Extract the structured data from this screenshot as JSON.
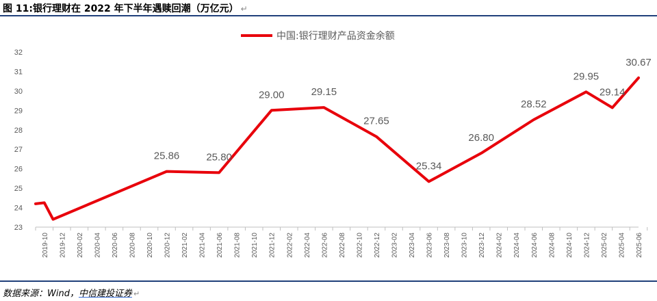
{
  "caption": {
    "text": "图 11:银行理财在 2022 年下半年遇赎回潮（万亿元）",
    "mark": "↵"
  },
  "source": {
    "prefix": "数据来源：Wind，",
    "brand": "中信建投证券",
    "mark": "↵"
  },
  "colors": {
    "series": "#e8000b",
    "axis_text": "#595959",
    "rule": "#1f3f7a"
  },
  "chart_data": {
    "type": "line",
    "title": "",
    "xlabel": "",
    "ylabel": "",
    "ylim": [
      23,
      32
    ],
    "yticks": [
      23,
      24,
      25,
      26,
      27,
      28,
      29,
      30,
      31,
      32
    ],
    "grid": false,
    "legend_position": "top-center",
    "x_tick_labels": [
      "2019-10",
      "2019-12",
      "2020-02",
      "2020-04",
      "2020-06",
      "2020-08",
      "2020-10",
      "2020-12",
      "2021-02",
      "2021-04",
      "2021-06",
      "2021-08",
      "2021-10",
      "2021-12",
      "2022-02",
      "2022-04",
      "2022-06",
      "2022-08",
      "2022-10",
      "2022-12",
      "2023-02",
      "2023-04",
      "2023-06",
      "2023-08",
      "2023-10",
      "2023-12",
      "2024-02",
      "2024-04",
      "2024-06",
      "2024-08",
      "2024-10",
      "2024-12",
      "2025-02",
      "2025-04",
      "2025-06"
    ],
    "series": [
      {
        "name": "中国:银行理财产品资金余额",
        "color": "#e8000b",
        "points": [
          {
            "x": "2019-09",
            "y": 24.2
          },
          {
            "x": "2019-10",
            "y": 24.25
          },
          {
            "x": "2019-11",
            "y": 23.4
          },
          {
            "x": "2020-12",
            "y": 25.86,
            "label": "25.86"
          },
          {
            "x": "2021-06",
            "y": 25.8,
            "label": "25.80"
          },
          {
            "x": "2021-12",
            "y": 29.0,
            "label": "29.00"
          },
          {
            "x": "2022-06",
            "y": 29.15,
            "label": "29.15"
          },
          {
            "x": "2022-12",
            "y": 27.65,
            "label": "27.65"
          },
          {
            "x": "2023-06",
            "y": 25.34,
            "label": "25.34"
          },
          {
            "x": "2023-12",
            "y": 26.8,
            "label": "26.80"
          },
          {
            "x": "2024-06",
            "y": 28.52,
            "label": "28.52"
          },
          {
            "x": "2024-12",
            "y": 29.95,
            "label": "29.95"
          },
          {
            "x": "2025-03",
            "y": 29.14,
            "label": "29.14"
          },
          {
            "x": "2025-06",
            "y": 30.67,
            "label": "30.67"
          }
        ]
      }
    ]
  }
}
